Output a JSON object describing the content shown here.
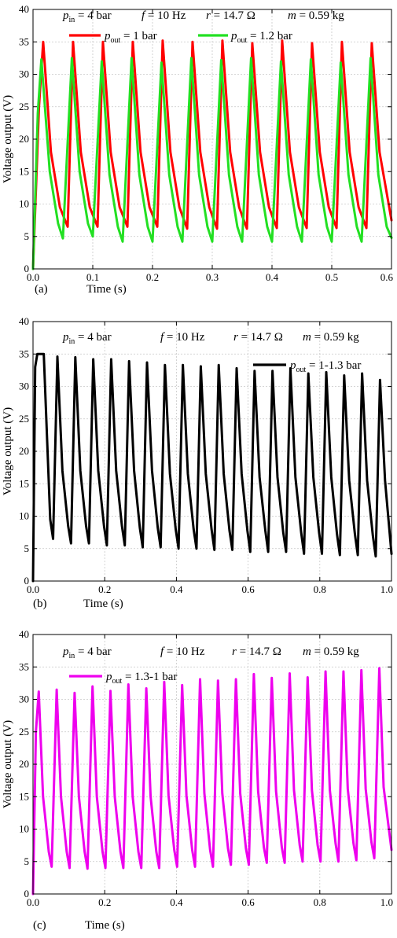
{
  "chart_data": [
    {
      "type": "line",
      "panel_label": "(a)",
      "xlabel": "Time (s)",
      "ylabel": "Voltage output (V)",
      "xlim": [
        0,
        0.6
      ],
      "ylim": [
        0,
        40
      ],
      "xticks": [
        "0.0",
        "0.1",
        "0.2",
        "0.3",
        "0.4",
        "0.5",
        "0.6"
      ],
      "yticks": [
        "0",
        "5",
        "10",
        "15",
        "20",
        "25",
        "30",
        "35",
        "40"
      ],
      "grid": true,
      "legend_placement": "top",
      "annotations": {
        "pin": {
          "sym": "p",
          "sub": "in",
          "rest": " = 4 bar"
        },
        "f": {
          "sym": "f",
          "rest": " = 10 Hz"
        },
        "r": {
          "sym": "r",
          "rest": " = 14.7 Ω"
        },
        "m": {
          "sym": "m",
          "rest": " = 0.59 kg"
        }
      },
      "series": [
        {
          "label": {
            "sym": "p",
            "sub": "out",
            "rest": " = 1 bar"
          },
          "color": "#ff0000",
          "x": [
            0.0,
            0.01,
            0.017,
            0.03,
            0.045,
            0.058,
            0.067,
            0.08,
            0.095,
            0.108,
            0.117,
            0.13,
            0.145,
            0.158,
            0.167,
            0.18,
            0.195,
            0.208,
            0.217,
            0.23,
            0.245,
            0.258,
            0.267,
            0.28,
            0.295,
            0.308,
            0.317,
            0.33,
            0.345,
            0.358,
            0.367,
            0.38,
            0.395,
            0.408,
            0.417,
            0.43,
            0.445,
            0.458,
            0.467,
            0.48,
            0.495,
            0.508,
            0.517,
            0.53,
            0.545,
            0.558,
            0.567,
            0.58,
            0.6
          ],
          "y": [
            0.0,
            25.0,
            35.0,
            18.0,
            9.5,
            6.5,
            35.0,
            18.0,
            9.5,
            6.5,
            35.0,
            18.0,
            9.5,
            6.5,
            35.0,
            18.0,
            9.5,
            6.5,
            35.2,
            18.0,
            9.5,
            6.2,
            35.0,
            18.0,
            9.5,
            6.2,
            35.2,
            18.0,
            9.5,
            6.2,
            34.8,
            18.0,
            9.5,
            6.3,
            35.2,
            18.0,
            9.5,
            6.3,
            34.8,
            18.0,
            9.5,
            6.3,
            35.0,
            18.0,
            9.5,
            6.3,
            34.8,
            18.0,
            7.5
          ]
        },
        {
          "label": {
            "sym": "p",
            "sub": "out",
            "rest": " = 1.2 bar"
          },
          "color": "#22e022",
          "x": [
            0.0,
            0.008,
            0.014,
            0.028,
            0.042,
            0.05,
            0.065,
            0.078,
            0.092,
            0.1,
            0.115,
            0.128,
            0.142,
            0.15,
            0.165,
            0.178,
            0.192,
            0.2,
            0.215,
            0.228,
            0.242,
            0.25,
            0.265,
            0.278,
            0.292,
            0.3,
            0.315,
            0.328,
            0.342,
            0.35,
            0.365,
            0.378,
            0.392,
            0.4,
            0.415,
            0.428,
            0.442,
            0.45,
            0.465,
            0.478,
            0.492,
            0.5,
            0.515,
            0.528,
            0.542,
            0.55,
            0.565,
            0.578,
            0.592,
            0.6
          ],
          "y": [
            0.0,
            24.0,
            32.3,
            15.0,
            7.0,
            4.7,
            32.5,
            15.0,
            7.0,
            5.0,
            32.0,
            14.5,
            6.5,
            4.2,
            32.5,
            14.5,
            6.5,
            4.2,
            31.8,
            14.5,
            6.5,
            4.2,
            32.5,
            14.5,
            6.5,
            4.2,
            32.2,
            14.5,
            6.5,
            4.2,
            32.5,
            14.5,
            6.5,
            4.2,
            32.0,
            14.5,
            6.5,
            4.2,
            32.3,
            14.5,
            6.5,
            4.2,
            31.8,
            14.5,
            6.5,
            4.2,
            32.5,
            14.5,
            6.5,
            4.8
          ]
        }
      ]
    },
    {
      "type": "line",
      "panel_label": "(b)",
      "xlabel": "Time (s)",
      "ylabel": "Voltage output (V)",
      "xlim": [
        0,
        1.0
      ],
      "ylim": [
        0,
        40
      ],
      "xticks": [
        "0.0",
        "0.2",
        "0.4",
        "0.6",
        "0.8",
        "1.0"
      ],
      "yticks": [
        "0",
        "5",
        "10",
        "15",
        "20",
        "25",
        "30",
        "35",
        "40"
      ],
      "grid": true,
      "legend_placement": "top-right",
      "annotations": {
        "pin": {
          "sym": "p",
          "sub": "in",
          "rest": " = 4 bar"
        },
        "f": {
          "sym": "f",
          "rest": " = 10 Hz"
        },
        "r": {
          "sym": "r",
          "rest": " = 14.7 Ω"
        },
        "m": {
          "sym": "m",
          "rest": " = 0.59 kg"
        }
      },
      "series": [
        {
          "label": {
            "sym": "p",
            "sub": "out",
            "rest": " = 1-1.3 bar"
          },
          "color": "#000000",
          "x": [
            0.0,
            0.006,
            0.012,
            0.03,
            0.048,
            0.056,
            0.068,
            0.082,
            0.098,
            0.106,
            0.118,
            0.132,
            0.148,
            0.156,
            0.168,
            0.182,
            0.198,
            0.206,
            0.218,
            0.232,
            0.248,
            0.256,
            0.268,
            0.282,
            0.298,
            0.306,
            0.318,
            0.332,
            0.348,
            0.356,
            0.368,
            0.382,
            0.398,
            0.406,
            0.418,
            0.432,
            0.448,
            0.456,
            0.468,
            0.482,
            0.498,
            0.506,
            0.518,
            0.532,
            0.548,
            0.556,
            0.568,
            0.582,
            0.598,
            0.606,
            0.618,
            0.632,
            0.648,
            0.656,
            0.668,
            0.682,
            0.698,
            0.706,
            0.718,
            0.732,
            0.748,
            0.756,
            0.768,
            0.782,
            0.798,
            0.806,
            0.818,
            0.832,
            0.848,
            0.856,
            0.868,
            0.882,
            0.898,
            0.906,
            0.918,
            0.932,
            0.948,
            0.956,
            0.968,
            0.982,
            1.0
          ],
          "y": [
            0.0,
            33.0,
            35.0,
            35.0,
            9.5,
            6.5,
            34.6,
            17.0,
            8.5,
            5.8,
            34.5,
            17.0,
            8.5,
            5.8,
            34.2,
            17.0,
            8.5,
            5.5,
            34.2,
            17.0,
            8.5,
            5.5,
            33.9,
            17.0,
            8.2,
            5.2,
            33.7,
            17.0,
            8.2,
            5.2,
            33.3,
            16.5,
            8.0,
            5.0,
            33.3,
            16.5,
            8.0,
            5.0,
            33.1,
            16.5,
            8.0,
            4.8,
            33.3,
            16.5,
            7.8,
            4.8,
            32.8,
            16.5,
            7.8,
            4.5,
            32.4,
            16.0,
            7.8,
            4.5,
            32.4,
            16.0,
            7.5,
            4.5,
            32.8,
            16.0,
            7.5,
            4.2,
            32.0,
            16.0,
            7.5,
            4.2,
            32.2,
            16.0,
            7.2,
            4.0,
            31.7,
            15.5,
            7.2,
            4.0,
            32.0,
            15.5,
            7.0,
            3.8,
            31.0,
            15.5,
            4.2
          ]
        }
      ]
    },
    {
      "type": "line",
      "panel_label": "(c)",
      "xlabel": "Time (s)",
      "ylabel": "Voltage output (V)",
      "xlim": [
        0,
        1.0
      ],
      "ylim": [
        0,
        40
      ],
      "xticks": [
        "0.0",
        "0.2",
        "0.4",
        "0.6",
        "0.8",
        "1.0"
      ],
      "yticks": [
        "0",
        "5",
        "10",
        "15",
        "20",
        "25",
        "30",
        "35",
        "40"
      ],
      "grid": true,
      "legend_placement": "top-left",
      "annotations": {
        "pin": {
          "sym": "p",
          "sub": "in",
          "rest": " = 4 bar"
        },
        "f": {
          "sym": "f",
          "rest": " = 10 Hz"
        },
        "r": {
          "sym": "r",
          "rest": " = 14.7 Ω"
        },
        "m": {
          "sym": "m",
          "rest": " = 0.59 kg"
        }
      },
      "series": [
        {
          "label": {
            "sym": "p",
            "sub": "out",
            "rest": " = 1.3-1 bar"
          },
          "color": "#ee00ee",
          "x": [
            0.0,
            0.008,
            0.016,
            0.028,
            0.044,
            0.052,
            0.066,
            0.078,
            0.094,
            0.102,
            0.116,
            0.128,
            0.144,
            0.152,
            0.166,
            0.178,
            0.194,
            0.202,
            0.216,
            0.228,
            0.244,
            0.252,
            0.266,
            0.278,
            0.294,
            0.302,
            0.316,
            0.328,
            0.344,
            0.352,
            0.366,
            0.378,
            0.394,
            0.402,
            0.416,
            0.428,
            0.444,
            0.452,
            0.466,
            0.478,
            0.494,
            0.502,
            0.516,
            0.528,
            0.544,
            0.552,
            0.566,
            0.578,
            0.594,
            0.602,
            0.616,
            0.628,
            0.644,
            0.652,
            0.666,
            0.678,
            0.694,
            0.702,
            0.716,
            0.728,
            0.744,
            0.752,
            0.766,
            0.778,
            0.794,
            0.802,
            0.816,
            0.828,
            0.844,
            0.852,
            0.866,
            0.878,
            0.894,
            0.902,
            0.916,
            0.928,
            0.944,
            0.952,
            0.966,
            0.978,
            1.0
          ],
          "y": [
            0.0,
            25.0,
            31.2,
            15.0,
            6.5,
            4.2,
            31.5,
            15.0,
            6.5,
            4.0,
            31.0,
            15.0,
            6.5,
            3.9,
            32.0,
            15.0,
            6.5,
            4.0,
            31.3,
            15.0,
            6.5,
            4.0,
            32.3,
            15.0,
            6.5,
            4.0,
            31.7,
            15.0,
            6.5,
            4.0,
            32.7,
            15.2,
            6.8,
            4.2,
            32.2,
            15.2,
            6.8,
            4.2,
            33.1,
            15.5,
            6.8,
            4.2,
            32.9,
            15.5,
            7.0,
            4.5,
            33.1,
            15.5,
            7.0,
            4.5,
            33.9,
            15.8,
            7.2,
            4.8,
            33.3,
            15.8,
            7.2,
            4.8,
            34.0,
            16.0,
            7.5,
            5.0,
            33.4,
            16.0,
            7.5,
            5.0,
            34.3,
            16.0,
            7.8,
            5.0,
            34.3,
            16.2,
            7.8,
            5.2,
            34.5,
            16.2,
            8.0,
            5.5,
            34.8,
            16.5,
            6.8
          ]
        }
      ]
    }
  ]
}
